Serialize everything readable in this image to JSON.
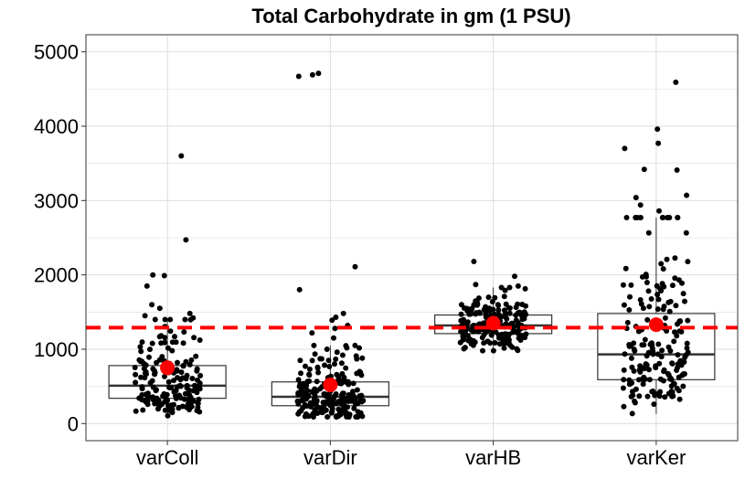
{
  "chart_data": {
    "type": "box",
    "title": "Total Carbohydrate in gm (1 PSU)",
    "xlabel": "",
    "ylabel": "",
    "categories": [
      "varColl",
      "varDir",
      "varHB",
      "varKer"
    ],
    "ylim": [
      -230,
      5230
    ],
    "yticks": [
      0,
      1000,
      2000,
      3000,
      4000,
      5000
    ],
    "grid": true,
    "reference_line": {
      "value": 1290,
      "color": "#ff0000",
      "style": "dashed"
    },
    "boxes": [
      {
        "category": "varColl",
        "q1": 340,
        "median": 510,
        "q3": 780,
        "whisker_low": 100,
        "whisker_high": 1400,
        "mean": 750
      },
      {
        "category": "varDir",
        "q1": 240,
        "median": 360,
        "q3": 560,
        "whisker_low": 90,
        "whisker_high": 1050,
        "mean": 520
      },
      {
        "category": "varHB",
        "q1": 1210,
        "median": 1320,
        "q3": 1460,
        "whisker_low": 980,
        "whisker_high": 1830,
        "mean": 1350
      },
      {
        "category": "varKer",
        "q1": 590,
        "median": 930,
        "q3": 1480,
        "whisker_low": 130,
        "whisker_high": 2770,
        "mean": 1330
      }
    ],
    "outliers": [
      {
        "category": "varColl",
        "values": [
          3600,
          2470,
          2000,
          1990,
          1850,
          1600,
          1550,
          1480,
          1450,
          1420
        ]
      },
      {
        "category": "varDir",
        "values": [
          4710,
          4690,
          4670,
          2110,
          1800,
          1480,
          1430,
          1390,
          1320,
          1280,
          1220,
          1150
        ]
      },
      {
        "category": "varHB",
        "values": [
          2180,
          1980,
          1870,
          1850
        ]
      },
      {
        "category": "varKer",
        "values": [
          4590,
          3960,
          3770,
          3700,
          3420,
          3410,
          3070,
          3040,
          2940,
          2860
        ]
      }
    ],
    "point_counts": {
      "varColl": 170,
      "varDir": 210,
      "varHB": 200,
      "varKer": 190
    },
    "colors": {
      "points": "#000000",
      "mean": "#ff0000",
      "reference_line": "#ff0000",
      "grid": "#dddddd",
      "box": "#333333"
    }
  }
}
